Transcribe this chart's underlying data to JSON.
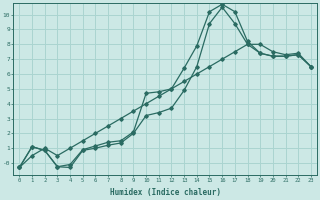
{
  "xlabel": "Humidex (Indice chaleur)",
  "bg_color": "#cce8e5",
  "grid_color": "#aad4d0",
  "line_color": "#2a6b62",
  "xlim": [
    -0.5,
    23.5
  ],
  "ylim": [
    -0.8,
    10.8
  ],
  "xticks": [
    0,
    1,
    2,
    3,
    4,
    5,
    6,
    7,
    8,
    9,
    10,
    11,
    12,
    13,
    14,
    15,
    16,
    17,
    18,
    19,
    20,
    21,
    22,
    23
  ],
  "yticks": [
    0,
    1,
    2,
    3,
    4,
    5,
    6,
    7,
    8,
    9,
    10
  ],
  "ytick_labels": [
    "-0",
    "1",
    "2",
    "3",
    "4",
    "5",
    "6",
    "7",
    "8",
    "9",
    "10"
  ],
  "line1_x": [
    0,
    1,
    2,
    3,
    4,
    5,
    6,
    7,
    8,
    9,
    10,
    11,
    12,
    13,
    14,
    15,
    16,
    17,
    18,
    19,
    20,
    21,
    22,
    23
  ],
  "line1_y": [
    -0.3,
    1.1,
    0.85,
    -0.25,
    -0.3,
    0.85,
    1.0,
    1.2,
    1.35,
    2.0,
    3.2,
    3.4,
    3.7,
    4.9,
    6.5,
    9.4,
    10.5,
    9.4,
    8.0,
    7.4,
    7.2,
    7.2,
    7.3,
    6.5
  ],
  "line2_x": [
    0,
    1,
    2,
    3,
    4,
    5,
    6,
    7,
    8,
    9,
    10,
    11,
    12,
    13,
    14,
    15,
    16,
    17,
    18,
    19,
    20,
    21,
    22,
    23
  ],
  "line2_y": [
    -0.3,
    1.1,
    0.85,
    -0.25,
    -0.1,
    0.9,
    1.15,
    1.4,
    1.5,
    2.1,
    4.7,
    4.8,
    5.0,
    6.4,
    7.9,
    10.2,
    10.7,
    10.2,
    8.2,
    7.4,
    7.2,
    7.2,
    7.3,
    6.5
  ],
  "line3_x": [
    0,
    1,
    2,
    3,
    4,
    5,
    6,
    7,
    8,
    9,
    10,
    11,
    12,
    13,
    14,
    15,
    16,
    17,
    18,
    19,
    20,
    21,
    22,
    23
  ],
  "line3_y": [
    -0.3,
    0.5,
    1.0,
    0.5,
    1.0,
    1.5,
    2.0,
    2.5,
    3.0,
    3.5,
    4.0,
    4.5,
    5.0,
    5.5,
    6.0,
    6.5,
    7.0,
    7.5,
    8.0,
    8.0,
    7.5,
    7.3,
    7.4,
    6.5
  ]
}
